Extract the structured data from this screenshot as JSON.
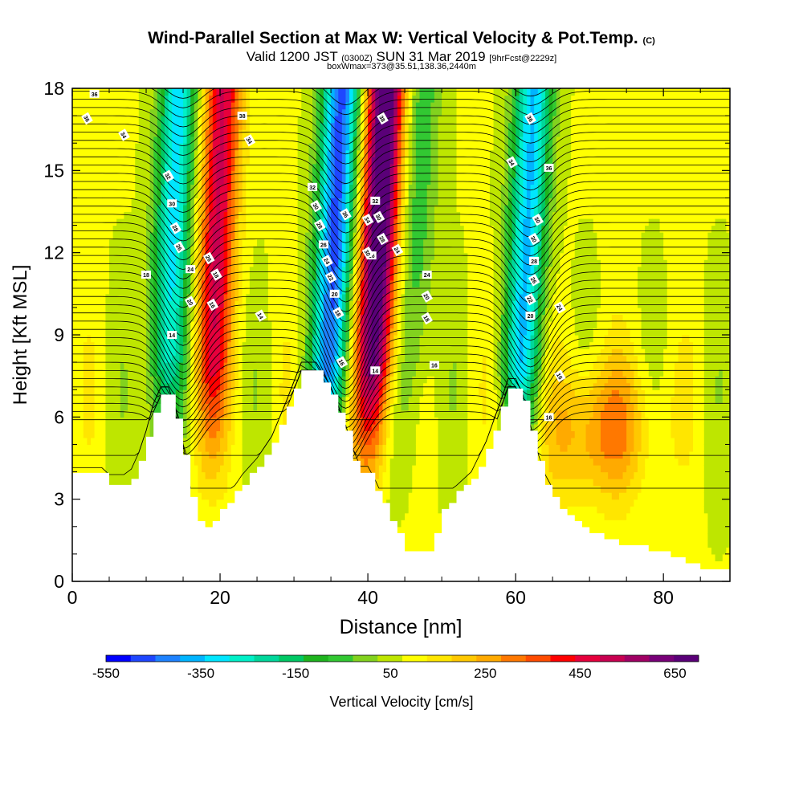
{
  "header": {
    "title": "Wind-Parallel Section at Max W: Vertical Velocity & Pot.Temp.",
    "copyright": "(C)",
    "valid_prefix": "Valid 1200 JST",
    "valid_utc": "(0300Z)",
    "valid_date": "SUN 31 Mar 2019",
    "forecast": "[9hrFcst@2229z]",
    "box_info": "boxWmax=373@35.51,138.36,2440m"
  },
  "chart_data": {
    "type": "heatmap",
    "xlabel": "Distance [nm]",
    "ylabel": "Height [Kft MSL]",
    "xlim": [
      0,
      89
    ],
    "ylim": [
      0,
      18
    ],
    "x_ticks": [
      0,
      20,
      40,
      60,
      80
    ],
    "y_ticks": [
      0,
      3,
      6,
      9,
      12,
      15,
      18
    ],
    "colorbar": {
      "label": "Vertical Velocity [cm/s]",
      "tick_labels": [
        "-550",
        "-350",
        "-150",
        "50",
        "250",
        "450",
        "650"
      ],
      "tick_values": [
        -550,
        -350,
        -150,
        50,
        250,
        450,
        650
      ],
      "range": [
        -550,
        700
      ],
      "colors": [
        "#0000ff",
        "#1e46ff",
        "#1e82ff",
        "#00b4ff",
        "#00e6ff",
        "#00f0c8",
        "#00d79b",
        "#00c864",
        "#1eb41e",
        "#32c832",
        "#82d21e",
        "#bee600",
        "#ffff00",
        "#ffe600",
        "#ffc800",
        "#ffaa00",
        "#ff7800",
        "#ff4b00",
        "#ff0000",
        "#e6003c",
        "#c80050",
        "#a00064",
        "#780078",
        "#5a0078"
      ]
    },
    "velocity_cores": [
      {
        "x": 13,
        "w": -400,
        "kind": "downdraft"
      },
      {
        "x": 19,
        "w": 420,
        "kind": "updraft"
      },
      {
        "x": 35,
        "w": -550,
        "kind": "downdraft"
      },
      {
        "x": 41,
        "w": 680,
        "kind": "updraft"
      },
      {
        "x": 46,
        "w": -150,
        "kind": "downdraft"
      },
      {
        "x": 61,
        "w": -430,
        "kind": "downdraft"
      },
      {
        "x": 72,
        "w": 220,
        "kind": "updraft"
      }
    ],
    "terrain_height_kft": [
      [
        0,
        3.85
      ],
      [
        4,
        3.85
      ],
      [
        5,
        3.6
      ],
      [
        7,
        3.6
      ],
      [
        8,
        3.8
      ],
      [
        9,
        4.4
      ],
      [
        10,
        5.2
      ],
      [
        11,
        6.2
      ],
      [
        12,
        6.8
      ],
      [
        13,
        6.8
      ],
      [
        14,
        6.0
      ],
      [
        15,
        4.7
      ],
      [
        16,
        3.0
      ],
      [
        17,
        2.2
      ],
      [
        18,
        2.0
      ],
      [
        19,
        2.2
      ],
      [
        20,
        2.6
      ],
      [
        21,
        2.8
      ],
      [
        22,
        3.2
      ],
      [
        23,
        3.6
      ],
      [
        25,
        4.2
      ],
      [
        27,
        5.0
      ],
      [
        29,
        6.3
      ],
      [
        31,
        7.7
      ],
      [
        33,
        7.7
      ],
      [
        35,
        6.8
      ],
      [
        37,
        5.4
      ],
      [
        38,
        4.5
      ],
      [
        39,
        3.9
      ],
      [
        40,
        3.9
      ],
      [
        41,
        3.4
      ],
      [
        42,
        2.8
      ],
      [
        43,
        2.2
      ],
      [
        44,
        1.7
      ],
      [
        45,
        1.2
      ],
      [
        46,
        1.0
      ],
      [
        48,
        1.2
      ],
      [
        49,
        1.8
      ],
      [
        50,
        2.6
      ],
      [
        52,
        3.2
      ],
      [
        54,
        3.7
      ],
      [
        56,
        4.8
      ],
      [
        58,
        6.3
      ],
      [
        59,
        7.1
      ],
      [
        60,
        7.1
      ],
      [
        61,
        6.5
      ],
      [
        62,
        5.4
      ],
      [
        63,
        4.4
      ],
      [
        64,
        3.6
      ],
      [
        65,
        3.1
      ],
      [
        66,
        2.7
      ],
      [
        67,
        2.4
      ],
      [
        68,
        2.1
      ],
      [
        70,
        1.8
      ],
      [
        72,
        1.6
      ],
      [
        74,
        1.4
      ],
      [
        76,
        1.3
      ],
      [
        78,
        1.2
      ],
      [
        80,
        1.0
      ],
      [
        82,
        0.8
      ],
      [
        84,
        0.6
      ],
      [
        86,
        0.35
      ],
      [
        89,
        0.35
      ]
    ],
    "contour_labels": [
      {
        "text": "36",
        "x": 3,
        "y": 17.8
      },
      {
        "text": "36",
        "x": 2,
        "y": 16.9
      },
      {
        "text": "34",
        "x": 7,
        "y": 16.3
      },
      {
        "text": "38",
        "x": 23,
        "y": 17.0
      },
      {
        "text": "34",
        "x": 24,
        "y": 16.1
      },
      {
        "text": "32",
        "x": 13,
        "y": 14.8
      },
      {
        "text": "30",
        "x": 13.5,
        "y": 13.8
      },
      {
        "text": "28",
        "x": 14,
        "y": 12.9
      },
      {
        "text": "26",
        "x": 14.5,
        "y": 12.2
      },
      {
        "text": "24",
        "x": 16,
        "y": 11.4
      },
      {
        "text": "26",
        "x": 18.5,
        "y": 11.8
      },
      {
        "text": "18",
        "x": 19.5,
        "y": 11.2
      },
      {
        "text": "18",
        "x": 10,
        "y": 11.2
      },
      {
        "text": "20",
        "x": 16,
        "y": 10.2
      },
      {
        "text": "16",
        "x": 19,
        "y": 10.1
      },
      {
        "text": "14",
        "x": 13.5,
        "y": 9.0
      },
      {
        "text": "14",
        "x": 25.5,
        "y": 9.7
      },
      {
        "text": "38",
        "x": 42,
        "y": 16.9
      },
      {
        "text": "32",
        "x": 32.5,
        "y": 14.4
      },
      {
        "text": "30",
        "x": 33,
        "y": 13.7
      },
      {
        "text": "28",
        "x": 33.5,
        "y": 13.0
      },
      {
        "text": "26",
        "x": 34,
        "y": 12.3
      },
      {
        "text": "24",
        "x": 34.5,
        "y": 11.7
      },
      {
        "text": "22",
        "x": 35,
        "y": 11.1
      },
      {
        "text": "20",
        "x": 35.5,
        "y": 10.5
      },
      {
        "text": "18",
        "x": 36,
        "y": 9.8
      },
      {
        "text": "16",
        "x": 36.5,
        "y": 8.0
      },
      {
        "text": "14",
        "x": 41,
        "y": 7.7
      },
      {
        "text": "36",
        "x": 37,
        "y": 13.4
      },
      {
        "text": "34",
        "x": 40,
        "y": 13.2
      },
      {
        "text": "32",
        "x": 41,
        "y": 13.9
      },
      {
        "text": "30",
        "x": 41.5,
        "y": 13.3
      },
      {
        "text": "28",
        "x": 42,
        "y": 12.5
      },
      {
        "text": "26",
        "x": 40.5,
        "y": 11.9
      },
      {
        "text": "30",
        "x": 40,
        "y": 12.0
      },
      {
        "text": "24",
        "x": 44,
        "y": 12.1
      },
      {
        "text": "24",
        "x": 48,
        "y": 11.2
      },
      {
        "text": "20",
        "x": 48,
        "y": 10.4
      },
      {
        "text": "18",
        "x": 48,
        "y": 9.6
      },
      {
        "text": "16",
        "x": 49,
        "y": 7.9
      },
      {
        "text": "36",
        "x": 62,
        "y": 16.9
      },
      {
        "text": "34",
        "x": 59.5,
        "y": 15.3
      },
      {
        "text": "36",
        "x": 64.5,
        "y": 15.1
      },
      {
        "text": "30",
        "x": 63,
        "y": 13.2
      },
      {
        "text": "30",
        "x": 62.5,
        "y": 12.5
      },
      {
        "text": "28",
        "x": 62.5,
        "y": 11.7
      },
      {
        "text": "26",
        "x": 62.5,
        "y": 11.0
      },
      {
        "text": "22",
        "x": 62,
        "y": 10.3
      },
      {
        "text": "20",
        "x": 62,
        "y": 9.7
      },
      {
        "text": "24",
        "x": 66,
        "y": 10.0
      },
      {
        "text": "16",
        "x": 66,
        "y": 7.5
      },
      {
        "text": "16",
        "x": 64.5,
        "y": 6.0
      }
    ]
  }
}
